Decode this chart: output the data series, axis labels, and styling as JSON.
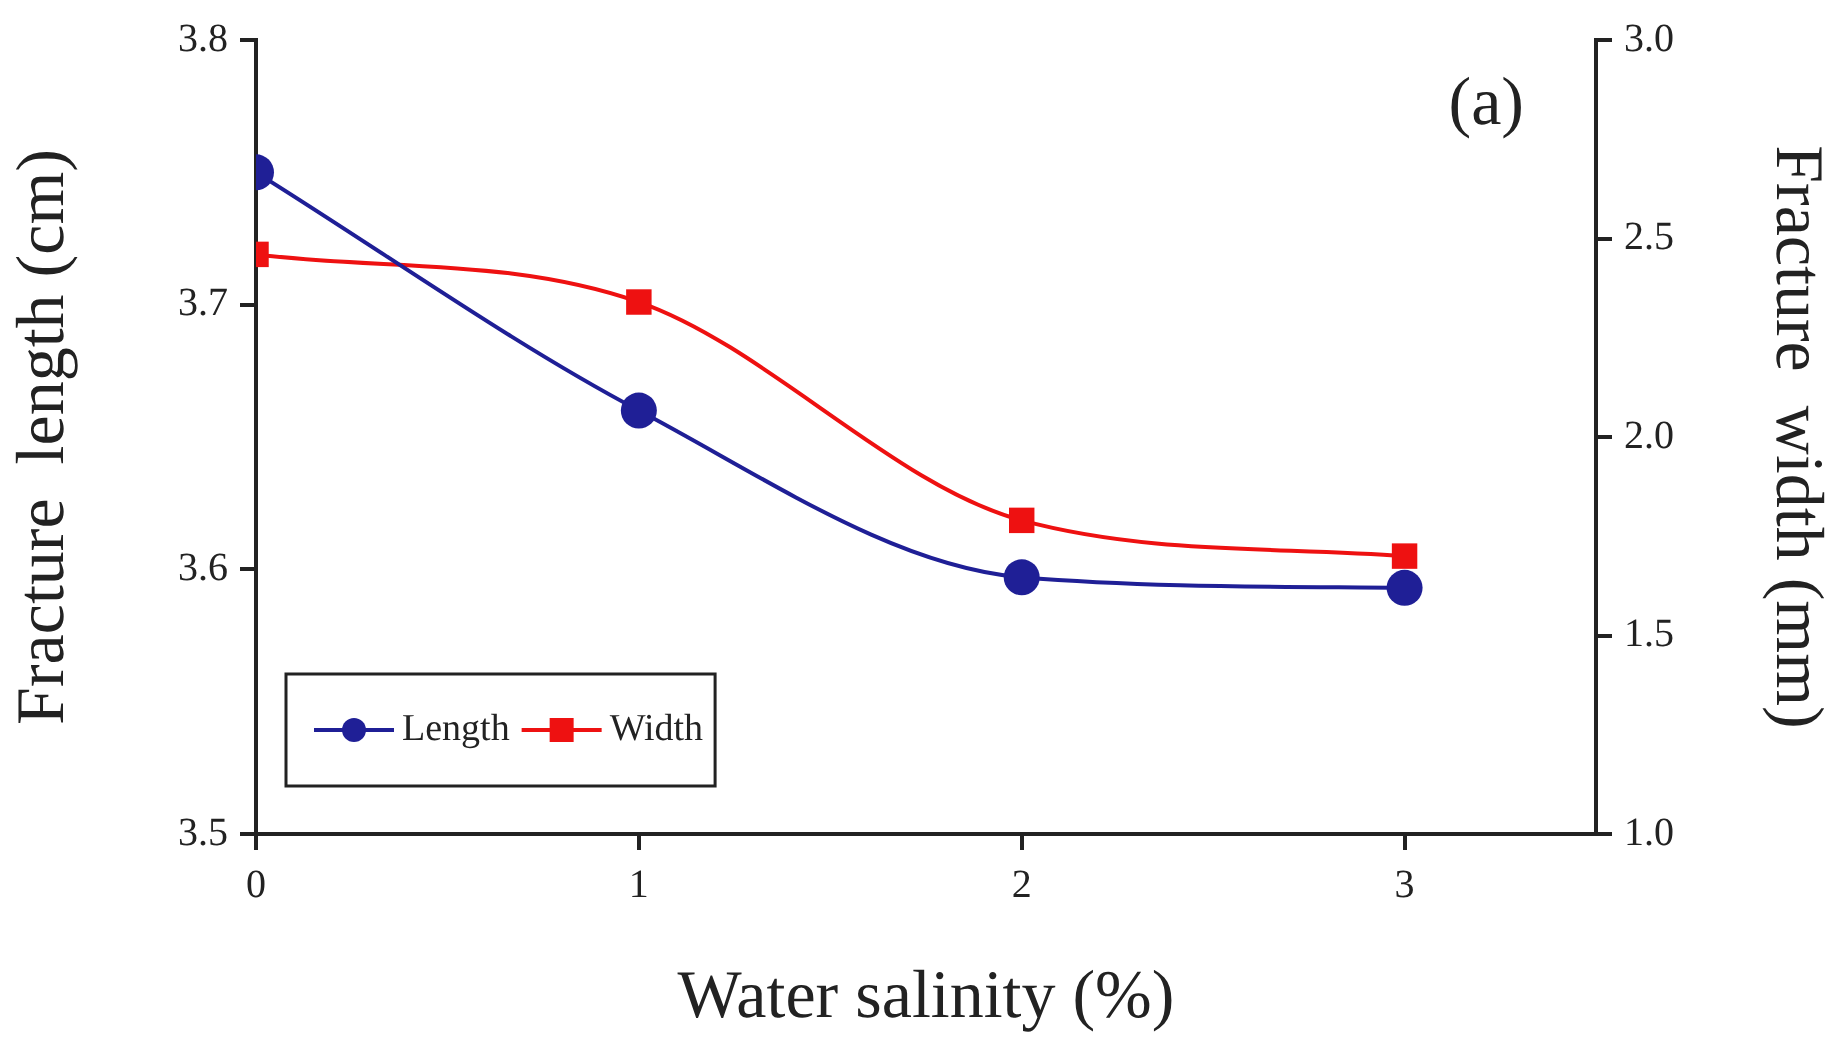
{
  "chart_data": {
    "type": "line",
    "xlabel": "Water salinity (%)",
    "ylabel": "Fracture  length (cm)",
    "y2label": "Fracture  width (mm)",
    "x": [
      0,
      1,
      2,
      3
    ],
    "xlim": [
      0,
      3.5
    ],
    "xticks": [
      0,
      1,
      2,
      3
    ],
    "ylim": [
      3.5,
      3.8
    ],
    "yticks": [
      {
        "value": 3.5,
        "label": "3.5"
      },
      {
        "value": 3.6,
        "label": "3.6"
      },
      {
        "value": 3.7,
        "label": "3.7"
      },
      {
        "value": 3.8,
        "label": "3.8"
      }
    ],
    "y2lim": [
      1.0,
      3.0
    ],
    "y2ticks": [
      {
        "value": 1.0,
        "label": "1.0"
      },
      {
        "value": 1.5,
        "label": "1.5"
      },
      {
        "value": 2.0,
        "label": "2.0"
      },
      {
        "value": 2.5,
        "label": "2.5"
      },
      {
        "value": 3.0,
        "label": "3.0"
      }
    ],
    "series": [
      {
        "name": "Length",
        "color": "#1f1f96",
        "values": [
          3.75,
          3.66,
          3.597,
          3.593
        ],
        "marker": "circle"
      },
      {
        "name": "Width",
        "color": "#ee1111",
        "values": [
          2.46,
          2.34,
          1.79,
          1.7
        ],
        "axis": "y2",
        "marker": "square"
      }
    ],
    "annotations": [
      "(a)"
    ],
    "legend": "bottom left",
    "grid": false,
    "line_style": "solid"
  }
}
